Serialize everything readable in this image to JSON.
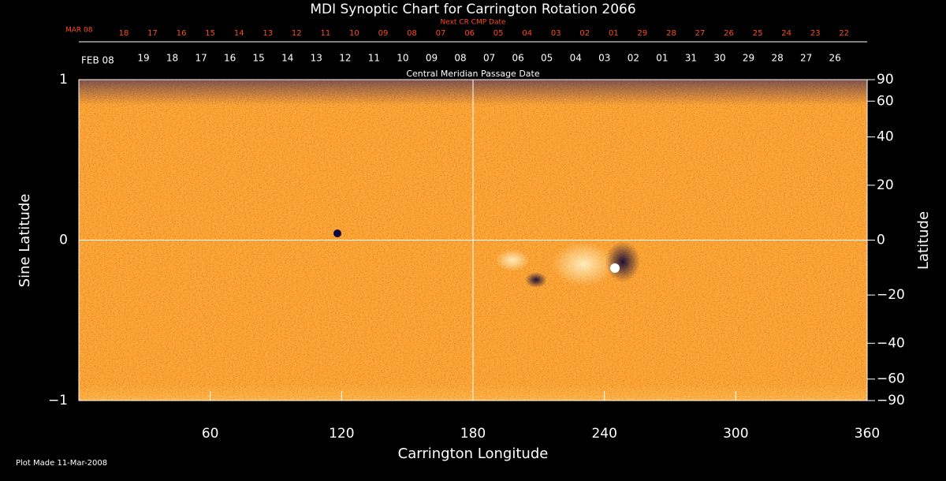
{
  "chart_data": {
    "type": "heatmap",
    "title": "MDI Synoptic Chart for Carrington Rotation 2066",
    "top_axis_title": "Next CR CMP Date",
    "top_axis_labels": [
      "MAR 08",
      "18",
      "17",
      "16",
      "15",
      "14",
      "13",
      "12",
      "11",
      "10",
      "09",
      "08",
      "07",
      "06",
      "05",
      "04",
      "03",
      "02",
      "01",
      "29",
      "28",
      "27",
      "26",
      "25",
      "24",
      "23",
      "22"
    ],
    "date_axis_labels": [
      "FEB 08",
      "19",
      "18",
      "17",
      "16",
      "15",
      "14",
      "13",
      "12",
      "11",
      "10",
      "09",
      "08",
      "07",
      "06",
      "05",
      "04",
      "03",
      "02",
      "01",
      "31",
      "30",
      "29",
      "28",
      "27",
      "26"
    ],
    "date_axis_title": "Central Meridian Passage Date",
    "xlabel": "Carrington Longitude",
    "ylabel": "Sine Latitude",
    "y2label": "Latitude",
    "xlim": [
      0,
      360
    ],
    "xticks": [
      60,
      120,
      180,
      240,
      300,
      360
    ],
    "ylim": [
      -1,
      1
    ],
    "yticks": [
      {
        "value": -1,
        "label": "−1"
      },
      0,
      1
    ],
    "y2lim": [
      -90,
      90
    ],
    "y2_scale": "sine",
    "y2ticks": [
      90,
      60,
      40,
      20,
      0,
      {
        "value": -20,
        "label": "−20"
      },
      {
        "value": -40,
        "label": "−40"
      },
      {
        "value": -60,
        "label": "−60"
      },
      {
        "value": -90,
        "label": "−90"
      }
    ],
    "footer": "Plot Made 11-Mar-2008"
  }
}
